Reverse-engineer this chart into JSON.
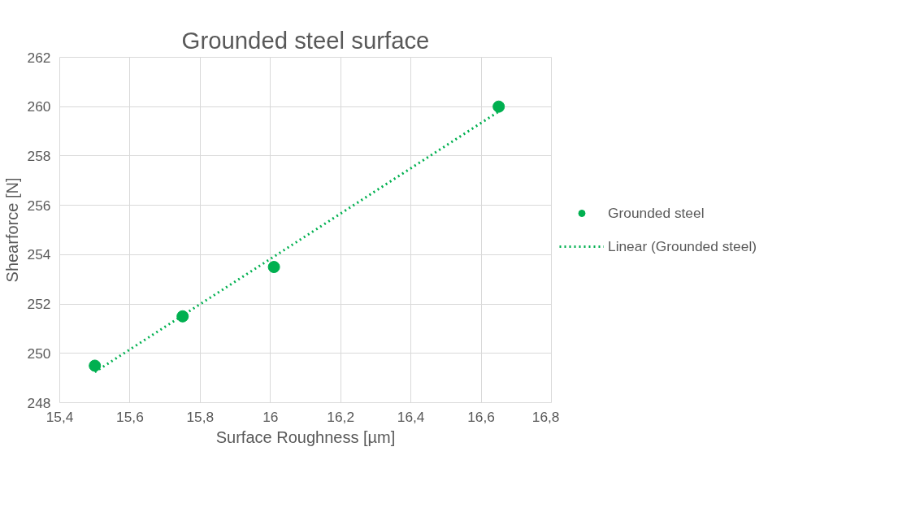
{
  "chart_data": {
    "type": "scatter",
    "title": "Grounded steel surface",
    "xlabel": "Surface Roughness [µm]",
    "ylabel": "Shearforce [N]",
    "xlim": [
      15.4,
      16.8
    ],
    "xticks": [
      {
        "value": 15.4,
        "label": "15,4"
      },
      {
        "value": 15.6,
        "label": "15,6"
      },
      {
        "value": 15.8,
        "label": "15,8"
      },
      16,
      {
        "value": 16.2,
        "label": "16,2"
      },
      {
        "value": 16.4,
        "label": "16,4"
      },
      {
        "value": 16.6,
        "label": "16,6"
      },
      {
        "value": 16.8,
        "label": "16,8"
      }
    ],
    "ylim": [
      248,
      262
    ],
    "yticks": [
      248,
      250,
      252,
      254,
      256,
      258,
      260,
      262
    ],
    "grid": true,
    "legend": "right",
    "series": [
      {
        "name": "Grounded steel",
        "marker": "circle",
        "color": "#00b050",
        "x": [
          15.5,
          15.75,
          16.01,
          16.65
        ],
        "values": [
          249.5,
          251.5,
          253.5,
          260
        ]
      },
      {
        "name": "Linear (Grounded steel)",
        "type": "line",
        "line_style": "dotted",
        "marker": "none",
        "color": "#00b050",
        "x": [
          15.5,
          16.65
        ],
        "values": [
          249.24,
          259.8
        ]
      }
    ]
  }
}
